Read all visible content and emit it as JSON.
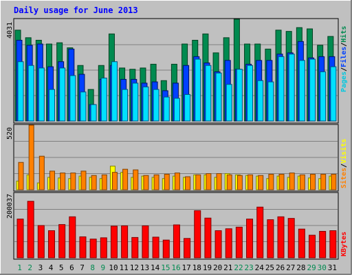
{
  "chart_data": [
    {
      "type": "bar",
      "title": "Daily usage for June 2013",
      "ymax_label": "4031",
      "ylim": [
        0,
        4031
      ],
      "legend": [
        {
          "name": "Pages",
          "color": "#00c8e0"
        },
        {
          "name": "Files",
          "color": "#0040ff"
        },
        {
          "name": "Hits",
          "color": "#008a50"
        }
      ],
      "legend_separator": "/",
      "categories": [
        "1",
        "2",
        "3",
        "4",
        "5",
        "6",
        "7",
        "8",
        "9",
        "10",
        "11",
        "12",
        "13",
        "14",
        "15",
        "16",
        "17",
        "18",
        "19",
        "20",
        "21",
        "22",
        "23",
        "24",
        "25",
        "26",
        "27",
        "28",
        "29",
        "30",
        "31"
      ],
      "weekend_days": [
        "1",
        "2",
        "8",
        "9",
        "15",
        "16",
        "22",
        "23",
        "29",
        "30"
      ],
      "series": [
        {
          "name": "Hits",
          "values": [
            3600,
            3300,
            3200,
            3050,
            3100,
            2900,
            2200,
            1250,
            2200,
            3450,
            2100,
            2050,
            2100,
            2250,
            1600,
            2250,
            3050,
            3200,
            3450,
            2700,
            3300,
            4031,
            3050,
            3050,
            2850,
            3600,
            3550,
            3700,
            3650,
            3000,
            3350
          ]
        },
        {
          "name": "Files",
          "values": [
            3200,
            3000,
            3050,
            2150,
            2350,
            2850,
            1850,
            650,
            1650,
            2200,
            1650,
            1650,
            1500,
            1550,
            1200,
            1500,
            2200,
            2550,
            2300,
            1950,
            2400,
            2050,
            2250,
            2400,
            2400,
            2650,
            2700,
            3150,
            2500,
            2550,
            2550
          ]
        },
        {
          "name": "Pages",
          "values": [
            2350,
            2200,
            2100,
            1250,
            2100,
            1800,
            1150,
            650,
            1700,
            2350,
            1250,
            1500,
            1350,
            1250,
            950,
            900,
            1050,
            2450,
            2200,
            1900,
            1450,
            2050,
            2200,
            1600,
            1550,
            2550,
            2650,
            2400,
            2450,
            1950,
            2150
          ]
        }
      ]
    },
    {
      "type": "bar",
      "ymax_label": "520",
      "ylim": [
        0,
        520
      ],
      "legend": [
        {
          "name": "Sites",
          "color": "#ff8000"
        },
        {
          "name": "Visits",
          "color": "#ffff00"
        }
      ],
      "legend_separator": "/",
      "categories": [
        "1",
        "2",
        "3",
        "4",
        "5",
        "6",
        "7",
        "8",
        "9",
        "10",
        "11",
        "12",
        "13",
        "14",
        "15",
        "16",
        "17",
        "18",
        "19",
        "20",
        "21",
        "22",
        "23",
        "24",
        "25",
        "26",
        "27",
        "28",
        "29",
        "30",
        "31"
      ],
      "series": [
        {
          "name": "Visits",
          "values": [
            70,
            120,
            55,
            100,
            95,
            90,
            110,
            100,
            90,
            190,
            140,
            100,
            110,
            100,
            90,
            110,
            100,
            120,
            120,
            100,
            130,
            120,
            115,
            110,
            90,
            110,
            100,
            110,
            95,
            90,
            110
          ]
        },
        {
          "name": "Sites",
          "values": [
            220,
            520,
            270,
            150,
            135,
            135,
            150,
            115,
            120,
            140,
            165,
            160,
            115,
            120,
            125,
            135,
            105,
            120,
            130,
            130,
            120,
            115,
            120,
            115,
            125,
            125,
            135,
            120,
            125,
            125,
            125
          ]
        }
      ]
    },
    {
      "type": "bar",
      "ymax_label": "200037",
      "ylim": [
        0,
        200037
      ],
      "legend": [
        {
          "name": "KBytes",
          "color": "#ff0000"
        }
      ],
      "categories": [
        "1",
        "2",
        "3",
        "4",
        "5",
        "6",
        "7",
        "8",
        "9",
        "10",
        "11",
        "12",
        "13",
        "14",
        "15",
        "16",
        "17",
        "18",
        "19",
        "20",
        "21",
        "22",
        "23",
        "24",
        "25",
        "26",
        "27",
        "28",
        "29",
        "30",
        "31"
      ],
      "series": [
        {
          "name": "KBytes",
          "values": [
            120000,
            175000,
            100000,
            84000,
            103000,
            127000,
            65000,
            58000,
            62000,
            98000,
            99000,
            63000,
            99000,
            64000,
            55000,
            102000,
            60000,
            146000,
            123000,
            84000,
            90000,
            95000,
            120000,
            157000,
            118000,
            127000,
            122000,
            89000,
            70000,
            82000,
            84000
          ]
        }
      ]
    }
  ],
  "colors": {
    "background": "#c0c0c0",
    "title": "#0000ff",
    "day_normal": "#000000",
    "day_weekend": "#008a50"
  }
}
